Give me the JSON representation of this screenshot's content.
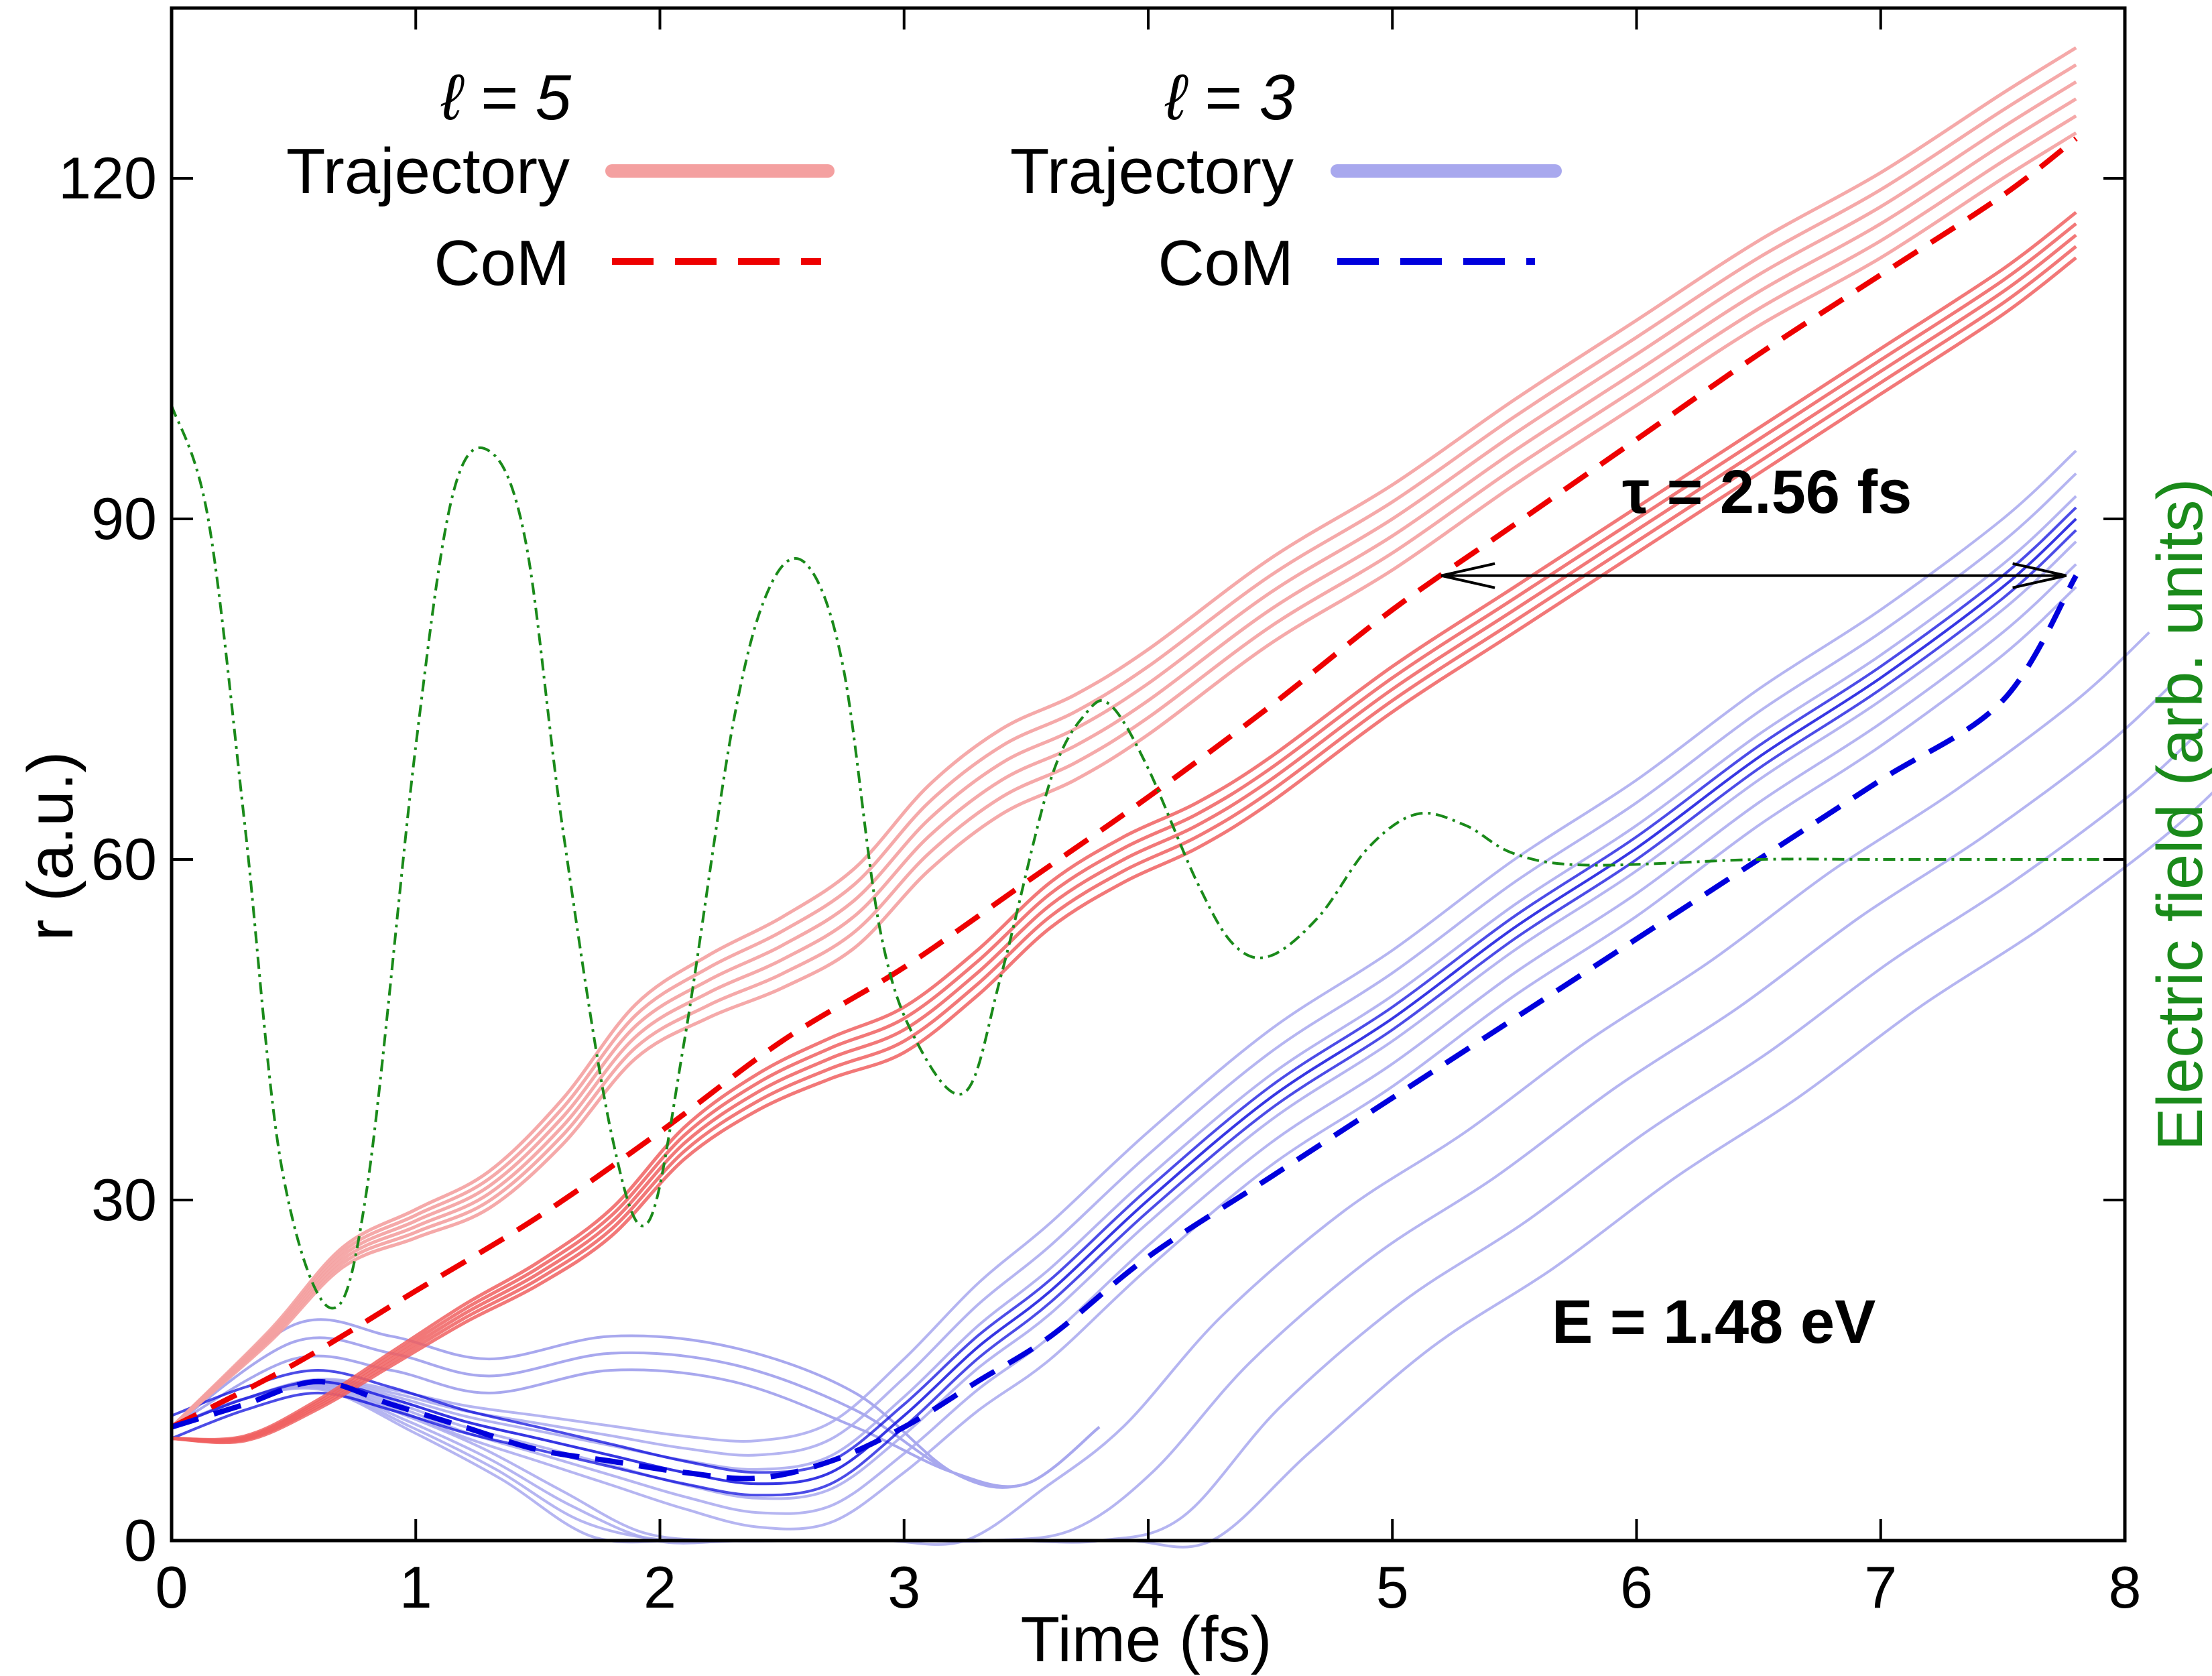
{
  "chart_data": {
    "type": "line",
    "xlabel": "Time (fs)",
    "ylabel": "r (a.u.)",
    "y2label": "Electric field (arb. units)",
    "xlim": [
      0,
      8
    ],
    "ylim": [
      0,
      135
    ],
    "xticks": [
      "0",
      "1",
      "2",
      "3",
      "4",
      "5",
      "6",
      "7",
      "8"
    ],
    "yticks": [
      "0",
      "30",
      "60",
      "90",
      "120"
    ],
    "grid": false,
    "colors": {
      "l5": "#ee0000",
      "l5_light": "#f4a0a0",
      "l3": "#0000dd",
      "l3_light": "#a8a8ee",
      "field": "#1a8a1a",
      "axis": "#000000"
    },
    "legend": {
      "placement": "top-left",
      "groups": [
        {
          "header": "ℓ = 5",
          "trajectory_label": "Trajectory",
          "com_label": "CoM"
        },
        {
          "header": "ℓ = 3",
          "trajectory_label": "Trajectory",
          "com_label": "CoM"
        }
      ]
    },
    "annotations": {
      "tau": "τ = 2.56 fs",
      "energy": "E = 1.48 eV"
    },
    "tau_arrow": {
      "x_start": 5.2,
      "x_end": 7.76,
      "y": 85
    },
    "series": [
      {
        "name": "ℓ = 5 CoM",
        "x": [
          0,
          0.5,
          1,
          1.5,
          2,
          2.5,
          3,
          3.5,
          4,
          4.5,
          5,
          5.5,
          6,
          6.5,
          7,
          7.5,
          7.8
        ],
        "y": [
          10,
          15.5,
          22,
          28.5,
          36,
          44,
          50.5,
          58,
          65.5,
          73.5,
          82,
          89.5,
          97,
          104.5,
          111.5,
          118.5,
          123.5
        ]
      },
      {
        "name": "ℓ = 5 trajectory (upper branch)",
        "x": [
          0,
          0.4,
          0.7,
          1,
          1.3,
          1.6,
          1.9,
          2.2,
          2.5,
          2.8,
          3.1,
          3.4,
          3.7,
          4,
          4.5,
          5,
          5.5,
          6,
          6.5,
          7,
          7.5,
          7.8
        ],
        "y": [
          10,
          18,
          25,
          28,
          31,
          37,
          45,
          49,
          52,
          56,
          63,
          68,
          71,
          75,
          83,
          89.5,
          97,
          104,
          111,
          117,
          124,
          128
        ]
      },
      {
        "name": "ℓ = 5 trajectory (lower branch)",
        "x": [
          0,
          0.3,
          0.6,
          0.9,
          1.2,
          1.5,
          1.8,
          2.1,
          2.4,
          2.7,
          3,
          3.3,
          3.6,
          3.9,
          4.2,
          4.5,
          5,
          5.5,
          6,
          6.5,
          7,
          7.5,
          7.8
        ],
        "y": [
          9,
          9,
          12,
          16,
          20,
          23.5,
          28,
          35,
          39.5,
          42.5,
          45,
          50,
          56,
          60,
          63,
          67,
          75,
          82,
          89,
          96,
          103,
          110,
          115
        ]
      },
      {
        "name": "ℓ = 3 CoM",
        "x": [
          0,
          0.3,
          0.6,
          0.9,
          1.2,
          1.5,
          1.8,
          2.1,
          2.4,
          2.7,
          3,
          3.3,
          3.6,
          4,
          4.5,
          5,
          5.5,
          6,
          6.5,
          7,
          7.5,
          7.8
        ],
        "y": [
          10,
          12,
          14,
          12,
          10,
          8,
          7,
          6,
          5.5,
          7,
          10,
          14,
          18,
          25,
          32,
          39,
          46,
          53,
          60,
          67,
          74,
          85
        ]
      },
      {
        "name": "ℓ = 3 trajectory (main bundle)",
        "x": [
          0,
          0.3,
          0.6,
          0.9,
          1.2,
          1.5,
          1.8,
          2.1,
          2.4,
          2.7,
          3,
          3.3,
          3.6,
          4,
          4.5,
          5,
          5.5,
          6,
          6.5,
          7,
          7.5,
          7.8
        ],
        "y": [
          10,
          12.5,
          14,
          12.5,
          10.5,
          9,
          7.5,
          6,
          5,
          6,
          11,
          17,
          22,
          30,
          39,
          46,
          54,
          61,
          69,
          76,
          84,
          90
        ]
      },
      {
        "name": "Electric field",
        "x": [
          0,
          0.15,
          0.3,
          0.45,
          0.65,
          0.8,
          1,
          1.15,
          1.3,
          1.45,
          1.6,
          1.8,
          1.95,
          2.1,
          2.3,
          2.45,
          2.6,
          2.75,
          2.9,
          3.05,
          3.25,
          3.4,
          3.6,
          3.75,
          3.85,
          4,
          4.2,
          4.35,
          4.5,
          4.7,
          4.9,
          5.1,
          5.3,
          5.5,
          5.8,
          6.5,
          7,
          8
        ],
        "y": [
          100,
          90,
          63,
          33,
          20.5,
          31,
          70,
          92,
          96,
          88,
          63,
          36,
          28,
          44,
          72,
          84,
          86,
          77,
          54,
          44,
          39.5,
          50,
          67,
          73,
          73.5,
          68,
          58,
          52.5,
          51.5,
          55,
          61,
          64,
          63,
          60.5,
          59.5,
          60,
          60,
          60
        ]
      }
    ]
  }
}
